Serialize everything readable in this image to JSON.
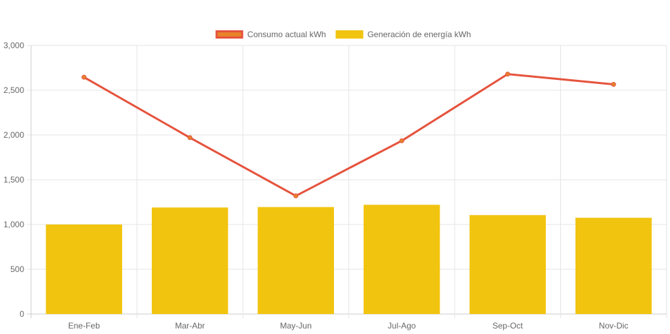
{
  "chart_data": {
    "type": "bar",
    "categories": [
      "Ene-Feb",
      "Mar-Abr",
      "May-Jun",
      "Jul-Ago",
      "Sep-Oct",
      "Nov-Dic"
    ],
    "series": [
      {
        "name": "Consumo actual kWh",
        "type": "line",
        "values": [
          2645,
          1970,
          1320,
          1935,
          2680,
          2565
        ]
      },
      {
        "name": "Generación de energía kWh",
        "type": "bar",
        "values": [
          1000,
          1190,
          1195,
          1220,
          1105,
          1075
        ]
      }
    ],
    "ylim": [
      0,
      3000
    ],
    "yticks": [
      "0",
      "500",
      "1,000",
      "1,500",
      "2,000",
      "2,500",
      "3,000"
    ],
    "grid": true,
    "legend_position": "top",
    "colors": {
      "line": "#e5533d",
      "line_fill": "#e8832a",
      "bar": "#f1c40f",
      "grid": "#e6e6e6",
      "axis": "#cccccc",
      "text": "#666666"
    }
  }
}
